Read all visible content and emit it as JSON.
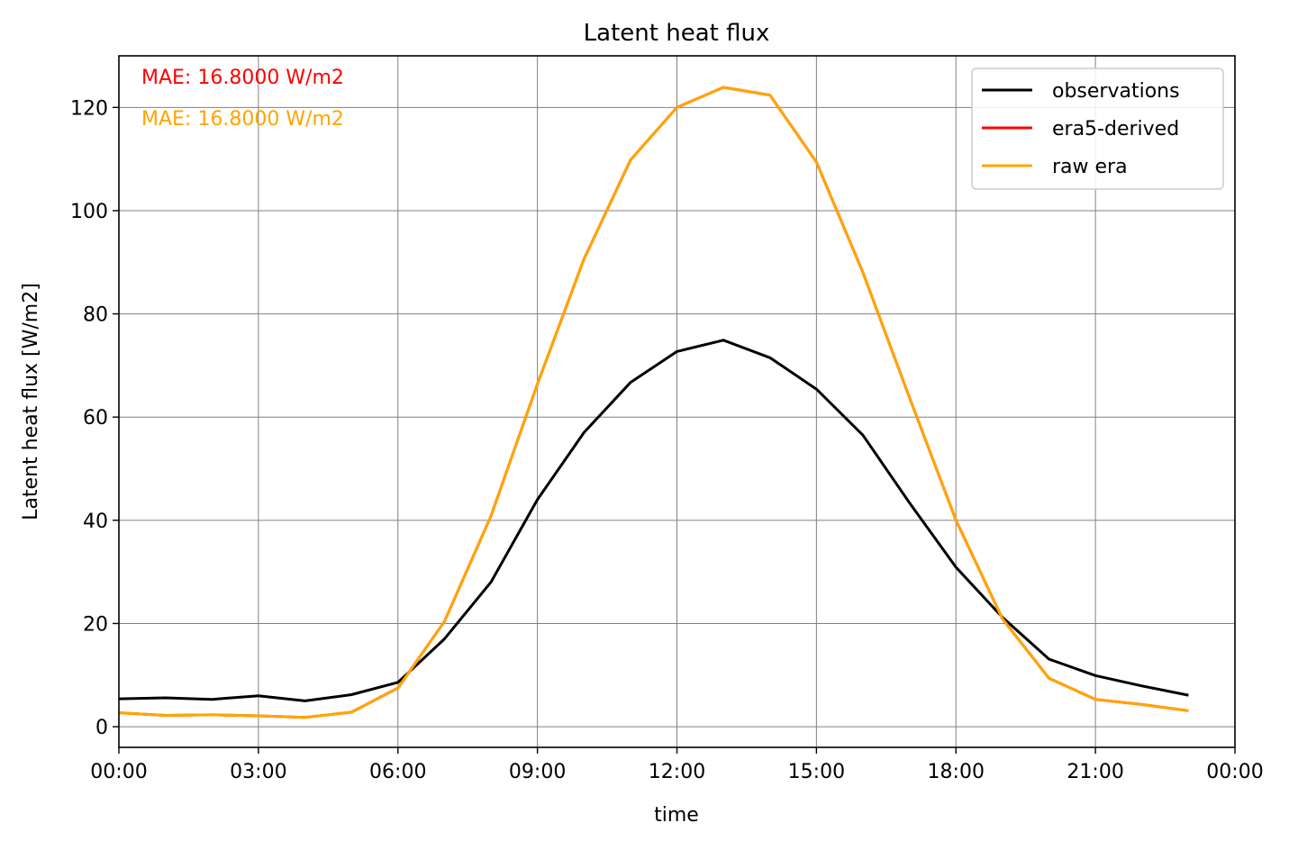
{
  "chart_data": {
    "type": "line",
    "title": "Latent heat flux",
    "xlabel": "time",
    "ylabel": "Latent heat flux [W/m2]",
    "x_hours": [
      0,
      1,
      2,
      3,
      4,
      5,
      6,
      7,
      8,
      9,
      10,
      11,
      12,
      13,
      14,
      15,
      16,
      17,
      18,
      19,
      20,
      21,
      22,
      23
    ],
    "xlim_hours": [
      0,
      24
    ],
    "ylim": [
      -4,
      130
    ],
    "xticks_hours": [
      0,
      3,
      6,
      9,
      12,
      15,
      18,
      21,
      24
    ],
    "xtick_labels": [
      "00:00",
      "03:00",
      "06:00",
      "09:00",
      "12:00",
      "15:00",
      "18:00",
      "21:00",
      "00:00"
    ],
    "yticks": [
      0,
      20,
      40,
      60,
      80,
      100,
      120
    ],
    "ytick_labels": [
      "0",
      "20",
      "40",
      "60",
      "80",
      "100",
      "120"
    ],
    "grid": true,
    "legend_position": "top-right",
    "series": [
      {
        "name": "observations",
        "color": "#000000",
        "values": [
          5.4,
          5.6,
          5.3,
          6.0,
          5.0,
          6.2,
          8.6,
          17.0,
          28.0,
          44.0,
          57.0,
          66.7,
          72.7,
          74.9,
          71.5,
          65.4,
          56.5,
          43.4,
          30.9,
          21.2,
          13.1,
          9.9,
          7.9,
          6.1
        ]
      },
      {
        "name": "era5-derived",
        "color": "#ff0000",
        "values": [
          2.7,
          2.2,
          2.3,
          2.1,
          1.8,
          2.8,
          7.5,
          20.4,
          40.8,
          66.4,
          90.6,
          109.8,
          120.0,
          123.9,
          122.4,
          109.4,
          88.0,
          63.8,
          40.0,
          20.9,
          9.4,
          5.3,
          4.3,
          3.1
        ]
      },
      {
        "name": "raw era",
        "color": "#ffa500",
        "values": [
          2.7,
          2.2,
          2.3,
          2.1,
          1.8,
          2.8,
          7.5,
          20.4,
          40.8,
          66.4,
          90.6,
          109.8,
          120.0,
          123.9,
          122.4,
          109.4,
          88.0,
          63.8,
          40.0,
          20.9,
          9.4,
          5.3,
          4.3,
          3.1
        ]
      }
    ],
    "annotations": [
      {
        "text": "MAE: 16.8000 W/m2",
        "color": "#ff0000"
      },
      {
        "text": "MAE: 16.8000 W/m2",
        "color": "#ffa500"
      }
    ]
  }
}
